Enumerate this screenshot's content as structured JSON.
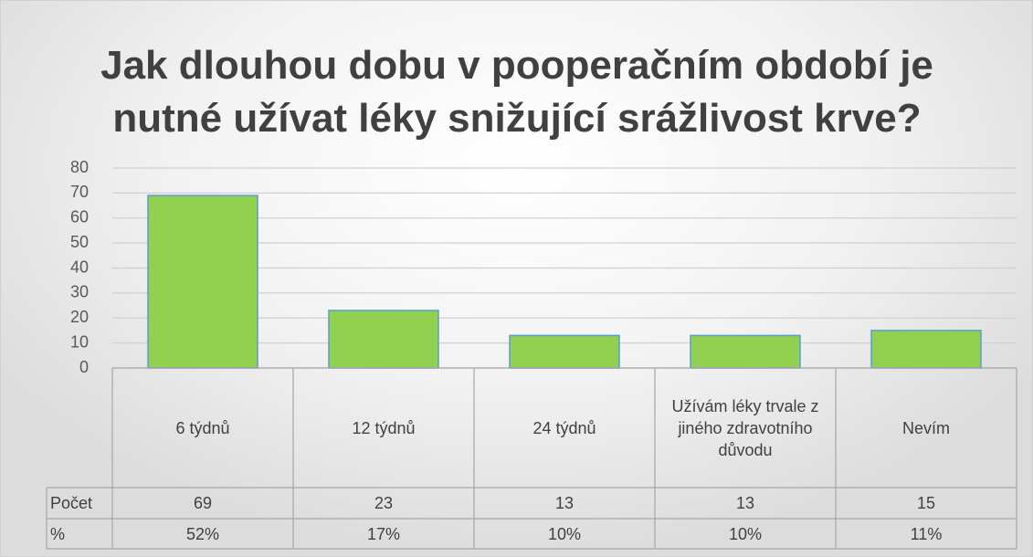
{
  "chart_data": {
    "type": "bar",
    "title": "Jak dlouhou dobu v pooperačním období je nutné užívat léky snižující srážlivost krve?",
    "categories": [
      "6 týdnů",
      "12 týdnů",
      "24 týdnů",
      "Užívám léky trvale z jiného zdravotního důvodu",
      "Nevím"
    ],
    "series": [
      {
        "name": "Počet",
        "color": "#92d050",
        "values": [
          69,
          23,
          13,
          13,
          15
        ]
      },
      {
        "name": "%",
        "values": [
          52,
          17,
          10,
          10,
          11
        ],
        "value_labels": [
          "52%",
          "17%",
          "10%",
          "10%",
          "11%"
        ]
      }
    ],
    "ylim": [
      0,
      80
    ],
    "yticks": [
      0,
      10,
      20,
      30,
      40,
      50,
      60,
      70,
      80
    ],
    "grid": true
  }
}
